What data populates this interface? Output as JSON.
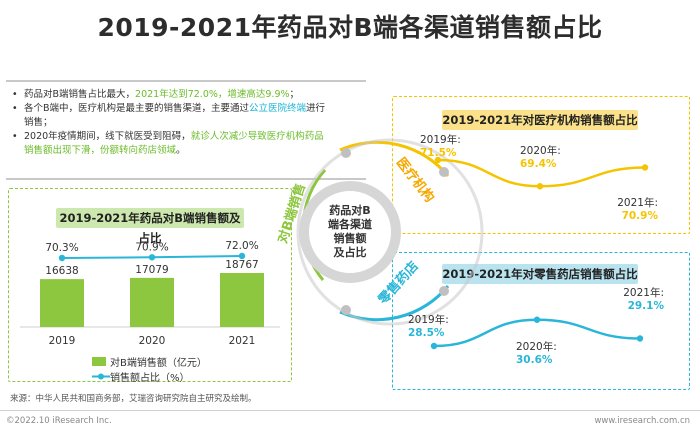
{
  "title": "2019-2021年药品对B端各渠道销售额占比",
  "summary": [
    {
      "parts": [
        {
          "text": "药品对B端销售占比最大，",
          "style": "normal"
        },
        {
          "text": "2021年达到72.0%，增速高达9.9%",
          "style": "green"
        },
        {
          "text": "；",
          "style": "normal"
        }
      ]
    },
    {
      "parts": [
        {
          "text": "各个B端中，医疗机构是最主要的销售渠道，主要通过",
          "style": "normal"
        },
        {
          "text": "公立医院终端",
          "style": "cyan"
        },
        {
          "text": "进行销售；",
          "style": "normal"
        }
      ]
    },
    {
      "parts": [
        {
          "text": "2020年疫情期间，线下就医受到阻碍，",
          "style": "normal"
        },
        {
          "text": "就诊人次减少导致医疗机构药品销售额出现下滑，份额转向药店领域",
          "style": "green"
        },
        {
          "text": "。",
          "style": "normal"
        }
      ]
    }
  ],
  "center_label": "药品对B端各渠道销售额及占比",
  "arc_labels": {
    "left": "对B端销售",
    "top_right": "医疗机构",
    "bottom_right": "零售药店"
  },
  "colors": {
    "green": "#8dc63f",
    "cyan": "#29b6d8",
    "yellow": "#f5c400",
    "dark_green": "#6cbb2a"
  },
  "chart_data": [
    {
      "type": "bar",
      "title": "2019-2021年药品对B端销售额及占比",
      "categories": [
        "2019",
        "2020",
        "2021"
      ],
      "series": [
        {
          "name": "对B端销售额（亿元）",
          "kind": "bar",
          "values": [
            16638,
            17079,
            18767
          ],
          "labels": [
            "16638",
            "17079",
            "18767"
          ]
        },
        {
          "name": "销售额占比（%）",
          "kind": "line",
          "values": [
            70.3,
            70.9,
            72.0
          ],
          "labels": [
            "70.3%",
            "70.9%",
            "72.0%"
          ]
        }
      ],
      "grid": false,
      "legend": "bottom-left"
    },
    {
      "type": "line",
      "title": "2019-2021年对医疗机构销售额占比",
      "categories": [
        "2019年:",
        "2020年:",
        "2021年:"
      ],
      "values": [
        71.5,
        69.4,
        70.9
      ],
      "labels": [
        "71.5%",
        "69.4%",
        "70.9%"
      ]
    },
    {
      "type": "line",
      "title": "2019-2021年对零售药店销售额占比",
      "categories": [
        "2019年:",
        "2020年:",
        "2021年:"
      ],
      "values": [
        28.5,
        30.6,
        29.1
      ],
      "labels": [
        "28.5%",
        "30.6%",
        "29.1%"
      ]
    }
  ],
  "footer": {
    "source": "来源：中华人民共和国商务部，艾瑞咨询研究院自主研究及绘制。",
    "copyright": "©2022.10 iResearch Inc.",
    "website": "www.iresearch.com.cn"
  }
}
